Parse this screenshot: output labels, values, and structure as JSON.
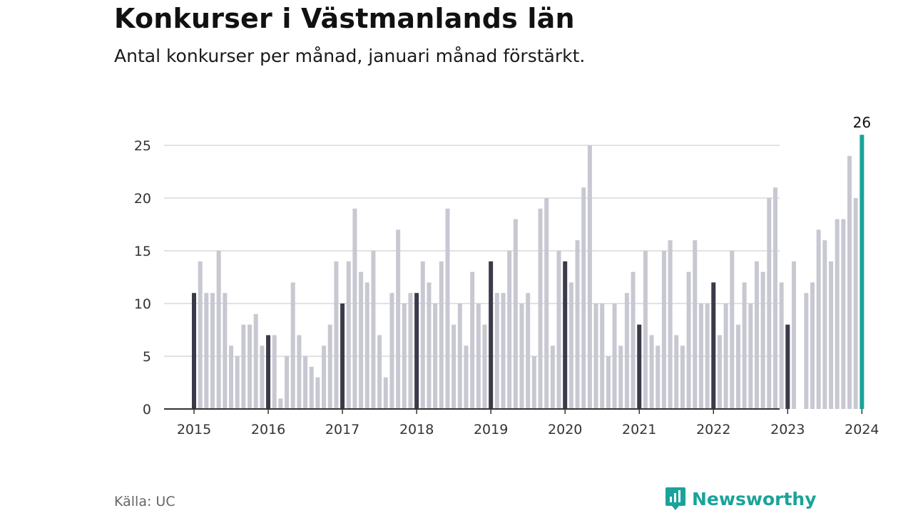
{
  "title": "Konkurser i Västmanlands län",
  "subtitle": "Antal konkurser per månad, januari månad förstärkt.",
  "source": "Källa: UC",
  "brand": {
    "name": "Newsworthy",
    "icon": "newsworthy-logo-icon"
  },
  "colors": {
    "regular": "#c8c8d2",
    "january": "#3b3a4a",
    "latest": "#1aa39a",
    "grid": "#d9d9d9",
    "axis": "#333333"
  },
  "chart_data": {
    "type": "bar",
    "title": "",
    "xlabel": "",
    "ylabel": "",
    "ylim": [
      0,
      26
    ],
    "yticks": [
      0,
      5,
      10,
      15,
      20,
      25
    ],
    "x_tick_labels": [
      "2015",
      "2016",
      "2017",
      "2018",
      "2019",
      "2020",
      "2021",
      "2022",
      "2023",
      "2024"
    ],
    "grid": true,
    "start": "2015-01",
    "frequency": "monthly",
    "values": [
      11,
      14,
      11,
      11,
      15,
      11,
      6,
      5,
      8,
      8,
      9,
      6,
      7,
      7,
      1,
      5,
      12,
      7,
      5,
      4,
      3,
      6,
      8,
      14,
      10,
      14,
      19,
      13,
      12,
      15,
      7,
      3,
      11,
      17,
      10,
      11,
      11,
      14,
      12,
      10,
      14,
      19,
      8,
      10,
      6,
      13,
      10,
      8,
      14,
      11,
      11,
      15,
      18,
      10,
      11,
      5,
      19,
      20,
      6,
      15,
      14,
      12,
      16,
      21,
      25,
      10,
      10,
      5,
      10,
      6,
      11,
      13,
      8,
      15,
      7,
      6,
      15,
      16,
      7,
      6,
      13,
      16,
      10,
      10,
      12,
      7,
      10,
      15,
      8,
      12,
      10,
      14,
      13,
      20,
      21,
      12,
      8,
      14,
      0,
      11,
      12,
      17,
      16,
      14,
      18,
      18,
      24,
      20,
      26
    ],
    "highlight": "january",
    "latest_value_label": "26"
  }
}
